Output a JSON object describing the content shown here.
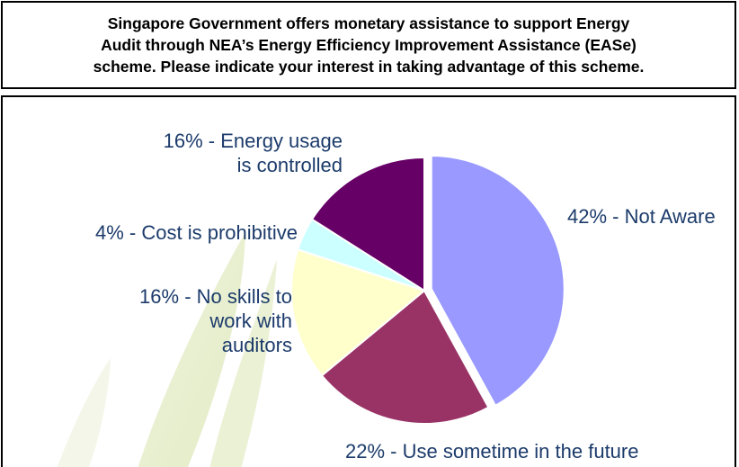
{
  "chart_data": {
    "type": "pie",
    "title": "Singapore Government offers monetary assistance to support Energy\nAudit through NEA’s Energy Efficiency Improvement Assistance (EASe)\nscheme. Please indicate your interest in taking advantage of this scheme.",
    "slices": [
      {
        "label": "42% - Not Aware",
        "value": 42,
        "color": "#9999ff"
      },
      {
        "label": "22% - Use sometime in the future",
        "value": 22,
        "color": "#993366"
      },
      {
        "label": "16% - No skills to work with auditors",
        "value": 16,
        "color": "#ffffcc"
      },
      {
        "label": "4% - Cost is prohibitive",
        "value": 4,
        "color": "#ccffff"
      },
      {
        "label": "16% - Energy usage is controlled",
        "value": 16,
        "color": "#660066"
      }
    ],
    "label_lines": [
      [
        "42% - Not Aware"
      ],
      [
        "22% - Use sometime in the future"
      ],
      [
        "16% - No skills to",
        "work with",
        "auditors"
      ],
      [
        "4% - Cost is prohibitive"
      ],
      [
        "16% - Energy usage",
        "is controlled"
      ]
    ],
    "label_color": "#1c3b6b",
    "legend": "none"
  }
}
